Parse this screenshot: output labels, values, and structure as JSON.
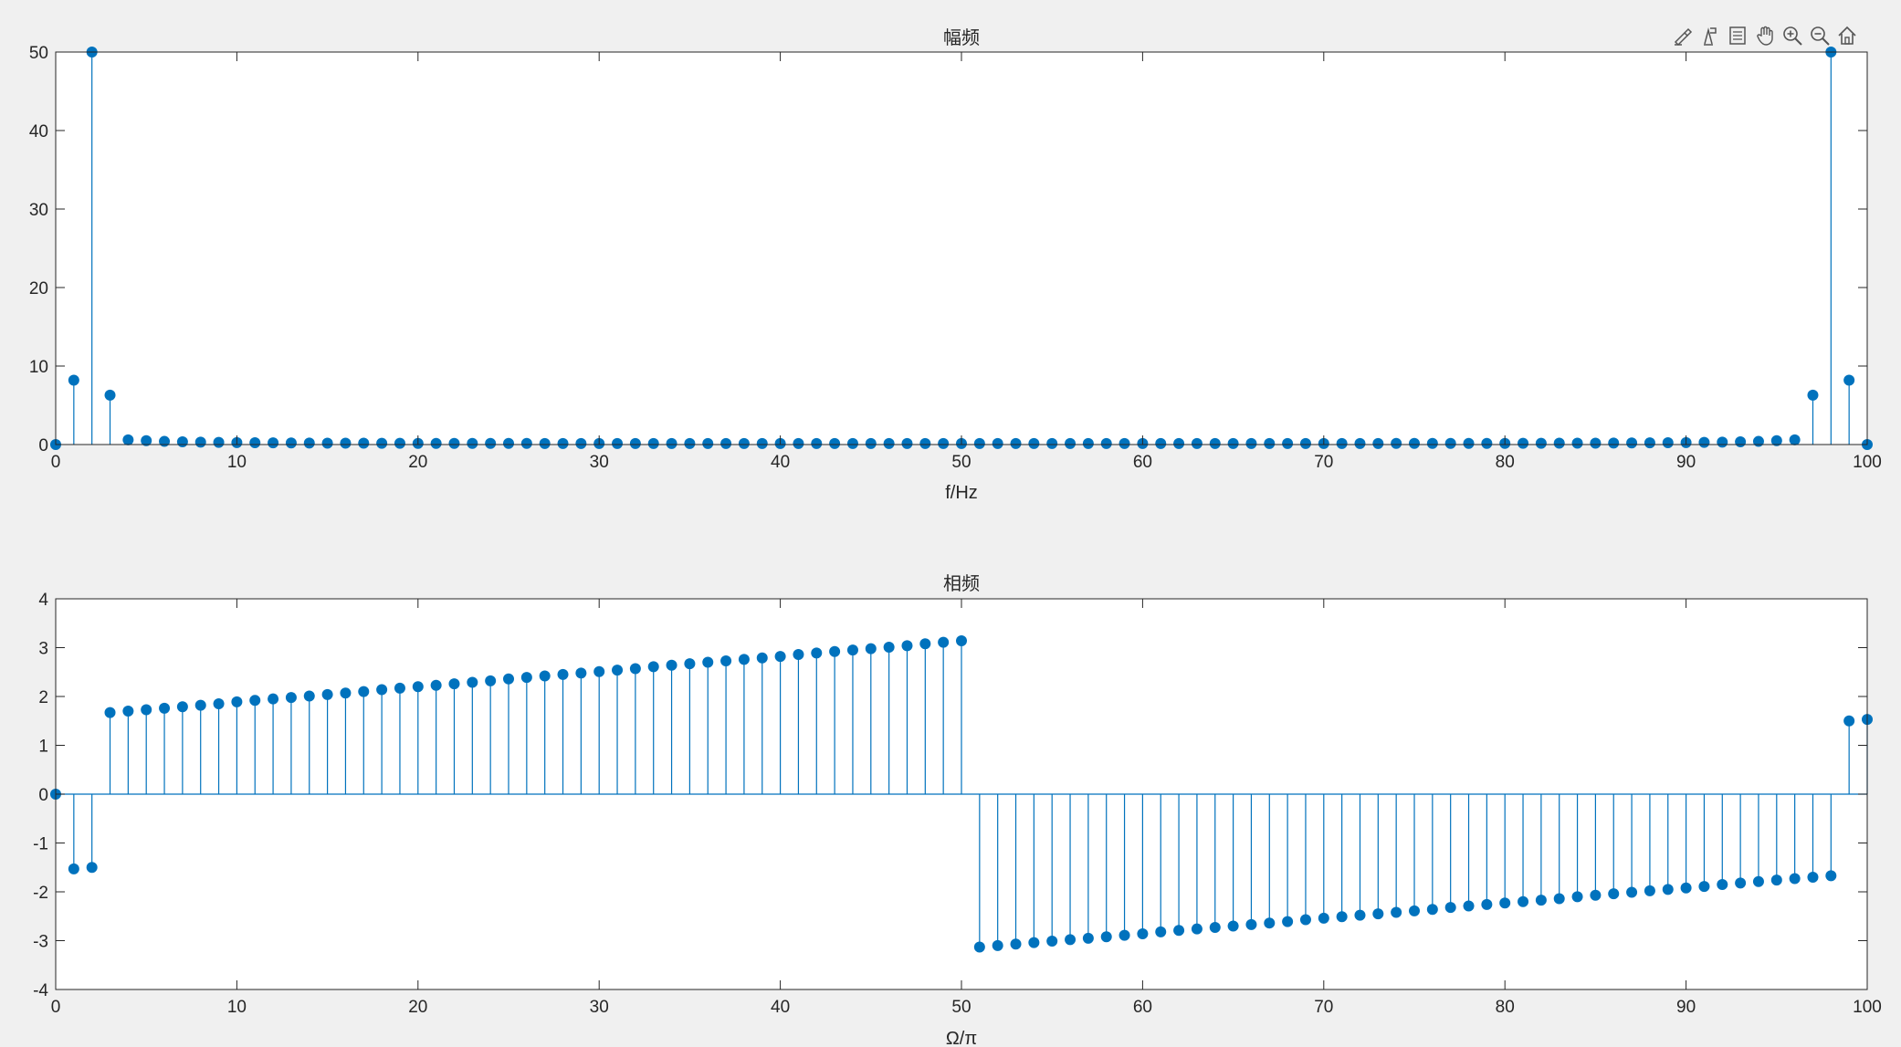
{
  "toolbar": {
    "icons": [
      "brush-icon",
      "datacursor-icon",
      "legend-icon",
      "pan-icon",
      "zoom-in-icon",
      "zoom-out-icon",
      "home-icon"
    ]
  },
  "colors": {
    "stem": "#0072bd",
    "axes": "#262626",
    "bg_figure": "#f0f0f0",
    "bg_axes": "#ffffff",
    "grid": "#262626"
  },
  "chart_data": [
    {
      "type": "stem",
      "title": "幅频",
      "xlabel": "f/Hz",
      "ylabel": "",
      "xlim": [
        0,
        100
      ],
      "ylim": [
        0,
        50
      ],
      "xticks": [
        0,
        10,
        20,
        30,
        40,
        50,
        60,
        70,
        80,
        90,
        100
      ],
      "yticks": [
        0,
        10,
        20,
        30,
        40,
        50
      ],
      "x": [
        0,
        1,
        2,
        3,
        4,
        5,
        6,
        7,
        8,
        9,
        10,
        11,
        12,
        13,
        14,
        15,
        16,
        17,
        18,
        19,
        20,
        21,
        22,
        23,
        24,
        25,
        26,
        27,
        28,
        29,
        30,
        31,
        32,
        33,
        34,
        35,
        36,
        37,
        38,
        39,
        40,
        41,
        42,
        43,
        44,
        45,
        46,
        47,
        48,
        49,
        50,
        51,
        52,
        53,
        54,
        55,
        56,
        57,
        58,
        59,
        60,
        61,
        62,
        63,
        64,
        65,
        66,
        67,
        68,
        69,
        70,
        71,
        72,
        73,
        74,
        75,
        76,
        77,
        78,
        79,
        80,
        81,
        82,
        83,
        84,
        85,
        86,
        87,
        88,
        89,
        90,
        91,
        92,
        93,
        94,
        95,
        96,
        97,
        98,
        99,
        100
      ],
      "values": [
        0,
        8.2,
        50,
        6.3,
        0.6,
        0.5,
        0.4,
        0.35,
        0.3,
        0.28,
        0.25,
        0.23,
        0.22,
        0.2,
        0.19,
        0.18,
        0.17,
        0.17,
        0.16,
        0.16,
        0.15,
        0.15,
        0.15,
        0.14,
        0.14,
        0.14,
        0.14,
        0.13,
        0.13,
        0.13,
        0.13,
        0.13,
        0.13,
        0.13,
        0.13,
        0.13,
        0.13,
        0.13,
        0.13,
        0.13,
        0.13,
        0.13,
        0.13,
        0.13,
        0.13,
        0.13,
        0.13,
        0.13,
        0.13,
        0.13,
        0.13,
        0.13,
        0.13,
        0.13,
        0.13,
        0.13,
        0.13,
        0.13,
        0.13,
        0.13,
        0.13,
        0.13,
        0.13,
        0.13,
        0.13,
        0.13,
        0.13,
        0.13,
        0.13,
        0.13,
        0.13,
        0.13,
        0.13,
        0.13,
        0.14,
        0.14,
        0.14,
        0.14,
        0.15,
        0.15,
        0.15,
        0.16,
        0.16,
        0.17,
        0.17,
        0.18,
        0.19,
        0.2,
        0.22,
        0.23,
        0.25,
        0.28,
        0.3,
        0.35,
        0.4,
        0.5,
        0.6,
        6.3,
        50,
        8.2,
        0
      ]
    },
    {
      "type": "stem",
      "title": "相频",
      "xlabel": "Ω/π",
      "ylabel": "",
      "xlim": [
        0,
        100
      ],
      "ylim": [
        -4,
        4
      ],
      "xticks": [
        0,
        10,
        20,
        30,
        40,
        50,
        60,
        70,
        80,
        90,
        100
      ],
      "yticks": [
        -4,
        -3,
        -2,
        -1,
        0,
        1,
        2,
        3,
        4
      ],
      "x": [
        0,
        1,
        2,
        3,
        4,
        5,
        6,
        7,
        8,
        9,
        10,
        11,
        12,
        13,
        14,
        15,
        16,
        17,
        18,
        19,
        20,
        21,
        22,
        23,
        24,
        25,
        26,
        27,
        28,
        29,
        30,
        31,
        32,
        33,
        34,
        35,
        36,
        37,
        38,
        39,
        40,
        41,
        42,
        43,
        44,
        45,
        46,
        47,
        48,
        49,
        50,
        51,
        52,
        53,
        54,
        55,
        56,
        57,
        58,
        59,
        60,
        61,
        62,
        63,
        64,
        65,
        66,
        67,
        68,
        69,
        70,
        71,
        72,
        73,
        74,
        75,
        76,
        77,
        78,
        79,
        80,
        81,
        82,
        83,
        84,
        85,
        86,
        87,
        88,
        89,
        90,
        91,
        92,
        93,
        94,
        95,
        96,
        97,
        98,
        99,
        100
      ],
      "values": [
        0,
        -1.53,
        -1.5,
        1.67,
        1.7,
        1.73,
        1.76,
        1.79,
        1.82,
        1.85,
        1.89,
        1.92,
        1.95,
        1.98,
        2.01,
        2.04,
        2.07,
        2.1,
        2.14,
        2.17,
        2.2,
        2.23,
        2.26,
        2.29,
        2.32,
        2.36,
        2.39,
        2.42,
        2.45,
        2.48,
        2.51,
        2.54,
        2.57,
        2.61,
        2.64,
        2.67,
        2.7,
        2.73,
        2.76,
        2.79,
        2.82,
        2.86,
        2.89,
        2.92,
        2.95,
        2.98,
        3.01,
        3.04,
        3.08,
        3.11,
        3.14,
        -3.13,
        -3.1,
        -3.07,
        -3.04,
        -3.01,
        -2.98,
        -2.95,
        -2.92,
        -2.89,
        -2.86,
        -2.82,
        -2.79,
        -2.76,
        -2.73,
        -2.7,
        -2.67,
        -2.64,
        -2.61,
        -2.57,
        -2.54,
        -2.51,
        -2.48,
        -2.45,
        -2.42,
        -2.39,
        -2.36,
        -2.32,
        -2.29,
        -2.26,
        -2.23,
        -2.2,
        -2.17,
        -2.14,
        -2.1,
        -2.07,
        -2.04,
        -2.01,
        -1.98,
        -1.95,
        -1.92,
        -1.89,
        -1.85,
        -1.82,
        -1.79,
        -1.76,
        -1.73,
        -1.7,
        -1.67,
        1.5,
        1.53
      ]
    }
  ]
}
